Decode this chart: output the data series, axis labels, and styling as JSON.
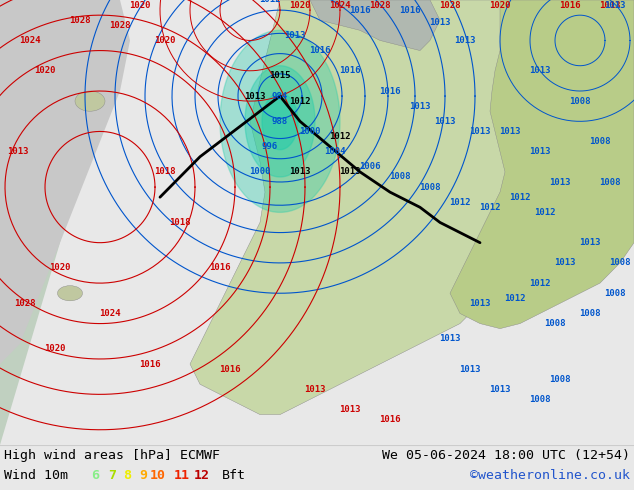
{
  "title_left": "High wind areas [hPa] ECMWF",
  "title_right": "We 05-06-2024 18:00 UTC (12+54)",
  "subtitle_left": "Wind 10m",
  "bft_label": "Bft",
  "bft_numbers": [
    "6",
    "7",
    "8",
    "9",
    "10",
    "11",
    "12"
  ],
  "bft_colors": [
    "#88ee88",
    "#aadd00",
    "#eeee00",
    "#ffaa00",
    "#ff6600",
    "#ee2200",
    "#bb0000"
  ],
  "copyright": "©weatheronline.co.uk",
  "caption_bg": "#e8e8e8",
  "text_color": "#000000",
  "font_size_title": 9.5,
  "font_size_bft": 9.5,
  "copyright_color": "#2255cc",
  "fig_width": 6.34,
  "fig_height": 4.9,
  "dpi": 100,
  "map_ocean": "#b8d8b8",
  "map_land_left": "#d0d0d0",
  "map_land_europe": "#c8d8a8",
  "map_land_east": "#b8cc88",
  "map_grey": "#a8a8a8",
  "wind_cyan": "#20ccaa",
  "red_contour": "#cc0000",
  "blue_contour": "#0055cc",
  "black_front": "#000000",
  "caption_line_color": "#cccccc"
}
